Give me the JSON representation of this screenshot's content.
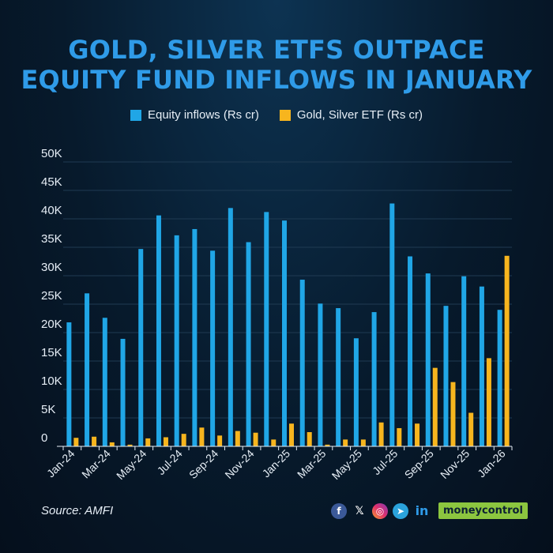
{
  "title_line1": "GOLD, SILVER ETFS OUTPACE",
  "title_line2": "EQUITY FUND INFLOWS IN JANUARY",
  "colors": {
    "equity": "#20a6e6",
    "gold": "#f7b51e",
    "title": "#2f9be8",
    "background": "#071a2c"
  },
  "source": "Source: AMFI",
  "social_icons": [
    "facebook-icon",
    "x-icon",
    "instagram-icon",
    "telegram-icon",
    "linkedin-icon"
  ],
  "social_labels": {
    "facebook": "f",
    "x": "𝕏",
    "instagram": "◎",
    "telegram": "➤",
    "linkedin": "in"
  },
  "brand": "moneycontrol",
  "chart_data": {
    "type": "bar",
    "title": "GOLD, SILVER ETFS OUTPACE EQUITY FUND INFLOWS IN JANUARY",
    "categories": [
      "Jan-24",
      "Feb-24",
      "Mar-24",
      "Apr-24",
      "May-24",
      "Jun-24",
      "Jul-24",
      "Aug-24",
      "Sep-24",
      "Oct-24",
      "Nov-24",
      "Dec-24",
      "Jan-25",
      "Feb-25",
      "Mar-25",
      "Apr-25",
      "May-25",
      "Jun-25",
      "Jul-25",
      "Aug-25",
      "Sep-25",
      "Oct-25",
      "Nov-25",
      "Dec-25",
      "Jan-26"
    ],
    "tick_labels": [
      "Jan-24",
      "Mar-24",
      "May-24",
      "Jul-24",
      "Sep-24",
      "Nov-24",
      "Jan-25",
      "Mar-25",
      "May-25",
      "Jul-25",
      "Sep-25",
      "Nov-25",
      "Jan-26"
    ],
    "series": [
      {
        "name": "Equity inflows (Rs cr)",
        "color": "#20a6e6",
        "values": [
          21800,
          26900,
          22600,
          18900,
          34700,
          40600,
          37100,
          38200,
          34400,
          41900,
          35900,
          41200,
          39700,
          29300,
          25100,
          24300,
          19000,
          23600,
          42700,
          33400,
          30400,
          24700,
          29900,
          28100,
          24000
        ]
      },
      {
        "name": "Gold, Silver ETF (Rs cr)",
        "color": "#f7b51e",
        "values": [
          1500,
          1700,
          700,
          300,
          1400,
          1600,
          2200,
          3300,
          1900,
          2700,
          2400,
          1200,
          4000,
          2500,
          300,
          1200,
          1200,
          4200,
          3200,
          4000,
          13800,
          11300,
          5900,
          15500,
          33500
        ]
      }
    ],
    "yticks": [
      0,
      5000,
      10000,
      15000,
      20000,
      25000,
      30000,
      35000,
      40000,
      45000,
      50000
    ],
    "ytick_labels": [
      "0",
      "5K",
      "10K",
      "15K",
      "20K",
      "25K",
      "30K",
      "35K",
      "40K",
      "45K",
      "50K"
    ],
    "ylim": [
      0,
      50000
    ],
    "grid": true,
    "legend_position": "top-center"
  }
}
